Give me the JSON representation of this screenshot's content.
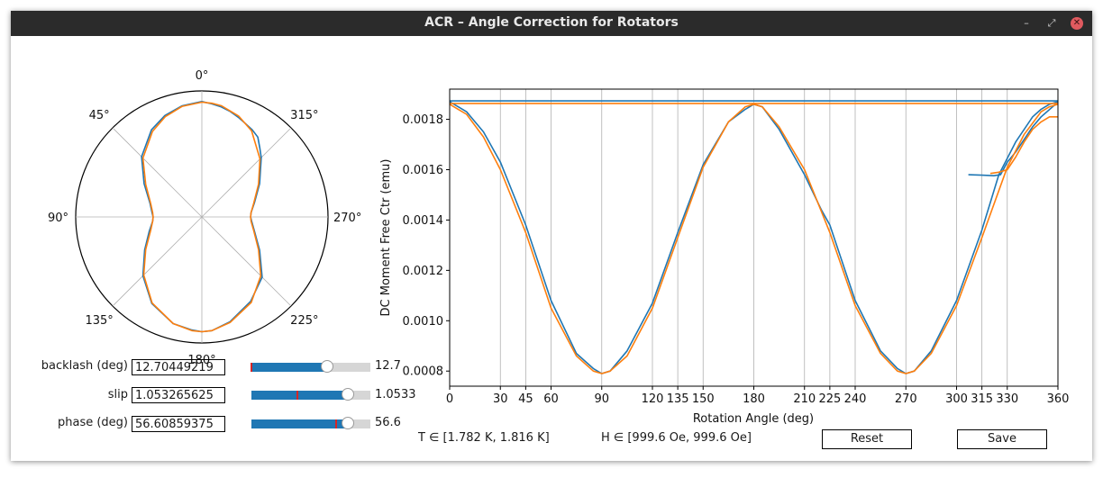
{
  "window": {
    "title": "ACR – Angle Correction for Rotators",
    "minimize_icon": "minimize-icon",
    "maximize_icon": "maximize-icon",
    "close_icon": "close-icon"
  },
  "polar": {
    "theta_labels": [
      "0°",
      "45°",
      "90°",
      "135°",
      "180°",
      "225°",
      "270°",
      "315°"
    ],
    "theta_values": [
      0,
      45,
      90,
      135,
      180,
      225,
      270,
      315
    ],
    "direction": "clockwise-from-top-reversed",
    "radial_ticks": false
  },
  "sliders": [
    {
      "label": "backlash (deg)",
      "textbox": "12.70449219",
      "value_text": "12.7",
      "value": 12.70449219,
      "min": 0,
      "max": 20,
      "initial": 0
    },
    {
      "label": "slip",
      "textbox": "1.053265625",
      "value_text": "1.0533",
      "value": 1.053265625,
      "min": 0,
      "max": 1.3,
      "initial": 0.5
    },
    {
      "label": "phase (deg)",
      "textbox": "56.60859375",
      "value_text": "56.6",
      "value": 56.60859375,
      "min": 0,
      "max": 70,
      "initial": 50
    }
  ],
  "info": {
    "temperature_range": "T ∈ [1.782 K, 1.816 K]",
    "field_range": "H ∈ [999.6 Oe, 999.6 Oe]"
  },
  "buttons": {
    "reset": "Reset",
    "save": "Save"
  },
  "colors": {
    "measured": "#1f77b4",
    "model": "#ff7f0e",
    "grid": "#b0b0b0",
    "titlebar": "#2b2b2b",
    "close": "#e05a5f"
  },
  "chart_data": [
    {
      "type": "line",
      "title": "",
      "xlabel": "Rotation Angle (deg)",
      "ylabel": "DC Moment Free Ctr (emu)",
      "xlim": [
        0,
        360
      ],
      "ylim": [
        0.00074,
        0.00192
      ],
      "xticks": [
        0,
        30,
        45,
        60,
        90,
        120,
        135,
        150,
        180,
        210,
        225,
        240,
        270,
        300,
        315,
        330,
        360
      ],
      "yticks": [
        0.0008,
        0.001,
        0.0012,
        0.0014,
        0.0016,
        0.0018
      ],
      "ytick_labels": [
        "0.0008",
        "0.0010",
        "0.0012",
        "0.0014",
        "0.0016",
        "0.0018"
      ],
      "grid": "x-only",
      "series": [
        {
          "color": "#1f77b4",
          "x": [
            0,
            10,
            20,
            30,
            45,
            60,
            75,
            85,
            90,
            95,
            105,
            120,
            135,
            150,
            165,
            175,
            180,
            185,
            195,
            210,
            220,
            225,
            240,
            255,
            265,
            270,
            275,
            285,
            300,
            315,
            325,
            335,
            345,
            350,
            355,
            360
          ],
          "y": [
            0.00187,
            0.00183,
            0.00175,
            0.00163,
            0.00138,
            0.00108,
            0.00087,
            0.00081,
            0.00079,
            0.0008,
            0.00088,
            0.00107,
            0.00135,
            0.00162,
            0.00179,
            0.00184,
            0.00186,
            0.00185,
            0.00176,
            0.00158,
            0.00144,
            0.00138,
            0.00108,
            0.00088,
            0.00081,
            0.00079,
            0.0008,
            0.00088,
            0.00108,
            0.00136,
            0.00158,
            0.00171,
            0.00181,
            0.00184,
            0.00186,
            0.00187
          ]
        },
        {
          "color": "#1f77b4",
          "x": [
            307,
            315,
            322,
            326,
            330,
            335,
            340,
            345,
            350,
            360
          ],
          "y": [
            0.00158,
            0.001578,
            0.001576,
            0.00158,
            0.00163,
            0.00167,
            0.00172,
            0.00177,
            0.00181,
            0.001868
          ]
        },
        {
          "color": "#1f77b4",
          "x": [
            0,
            360
          ],
          "y": [
            0.001873,
            0.001873
          ]
        },
        {
          "color": "#ff7f0e",
          "x": [
            0,
            10,
            20,
            30,
            45,
            60,
            75,
            85,
            90,
            95,
            105,
            120,
            135,
            150,
            165,
            175,
            180,
            185,
            195,
            210,
            225,
            240,
            255,
            265,
            270,
            275,
            285,
            300,
            315,
            330,
            340,
            350,
            355,
            360
          ],
          "y": [
            0.00186,
            0.00182,
            0.00173,
            0.0016,
            0.00135,
            0.00105,
            0.00086,
            0.0008,
            0.00079,
            0.0008,
            0.00086,
            0.00105,
            0.00133,
            0.00161,
            0.00179,
            0.00185,
            0.00186,
            0.00185,
            0.00177,
            0.0016,
            0.00135,
            0.00106,
            0.00087,
            0.0008,
            0.00079,
            0.0008,
            0.00087,
            0.00106,
            0.00133,
            0.00161,
            0.00174,
            0.00183,
            0.00185,
            0.00186
          ]
        },
        {
          "color": "#ff7f0e",
          "x": [
            320,
            325,
            330,
            335,
            340,
            345,
            350,
            355,
            360
          ],
          "y": [
            0.001585,
            0.00159,
            0.0016,
            0.00165,
            0.00171,
            0.00176,
            0.00179,
            0.00181,
            0.00181
          ]
        },
        {
          "color": "#ff7f0e",
          "x": [
            0,
            360
          ],
          "y": [
            0.001863,
            0.001863
          ]
        }
      ]
    },
    {
      "type": "line",
      "projection": "polar",
      "title": "",
      "theta_ticks": [
        0,
        45,
        90,
        135,
        180,
        225,
        270,
        315
      ],
      "series": [
        {
          "color": "#1f77b4",
          "theta": [
            0,
            10,
            20,
            30,
            45,
            60,
            75,
            85,
            90,
            95,
            105,
            120,
            135,
            150,
            165,
            175,
            180,
            185,
            195,
            210,
            225,
            240,
            255,
            265,
            270,
            275,
            285,
            300,
            315,
            320,
            325,
            330,
            335,
            340,
            345,
            350,
            355,
            360
          ],
          "r": [
            0.00187,
            0.00183,
            0.00175,
            0.00163,
            0.00138,
            0.00108,
            0.00087,
            0.00081,
            0.00079,
            0.0008,
            0.00088,
            0.00107,
            0.00135,
            0.00162,
            0.00179,
            0.00184,
            0.00186,
            0.00185,
            0.00176,
            0.00158,
            0.00138,
            0.00108,
            0.00088,
            0.00081,
            0.00079,
            0.0008,
            0.00088,
            0.00108,
            0.00136,
            0.00146,
            0.00158,
            0.00163,
            0.00167,
            0.00172,
            0.00177,
            0.00181,
            0.00184,
            0.00187
          ]
        },
        {
          "color": "#ff7f0e",
          "theta": [
            0,
            10,
            20,
            30,
            45,
            60,
            75,
            85,
            90,
            95,
            105,
            120,
            135,
            150,
            165,
            175,
            180,
            185,
            195,
            210,
            225,
            240,
            255,
            265,
            270,
            275,
            285,
            300,
            315,
            330,
            340,
            350,
            355,
            360
          ],
          "r": [
            0.00186,
            0.00182,
            0.00173,
            0.0016,
            0.00135,
            0.00105,
            0.00086,
            0.0008,
            0.00079,
            0.0008,
            0.00086,
            0.00105,
            0.00133,
            0.00161,
            0.00179,
            0.00185,
            0.00186,
            0.00185,
            0.00177,
            0.0016,
            0.00135,
            0.00106,
            0.00087,
            0.0008,
            0.00079,
            0.0008,
            0.00087,
            0.00106,
            0.00133,
            0.00161,
            0.00174,
            0.00183,
            0.00185,
            0.00186
          ]
        }
      ]
    }
  ]
}
